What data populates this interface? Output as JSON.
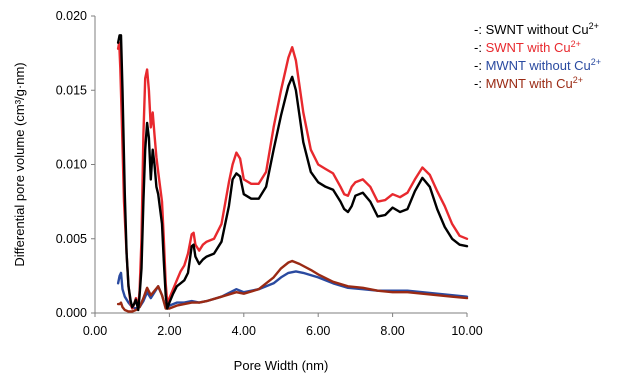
{
  "chart_data": {
    "type": "line",
    "title": "",
    "xlabel": "Pore Width (nm)",
    "ylabel": "Differential pore volume (cm³/g·nm)",
    "xlim": [
      0,
      10
    ],
    "ylim": [
      0,
      0.02
    ],
    "x_ticks": [
      "0.00",
      "2.00",
      "4.00",
      "6.00",
      "8.00",
      "10.00"
    ],
    "y_ticks": [
      "0.000",
      "0.005",
      "0.010",
      "0.015",
      "0.020"
    ],
    "grid": false,
    "legend_position": "right",
    "series": [
      {
        "name_prefix": "-: ",
        "name_main": "SWNT without Cu",
        "name_sup": "2+",
        "color": "#000000",
        "points": [
          [
            0.62,
            0.0182
          ],
          [
            0.66,
            0.0187
          ],
          [
            0.7,
            0.0187
          ],
          [
            0.74,
            0.015
          ],
          [
            0.8,
            0.008
          ],
          [
            0.85,
            0.004
          ],
          [
            0.9,
            0.0018
          ],
          [
            0.96,
            0.0008
          ],
          [
            1.0,
            0.0004
          ],
          [
            1.05,
            0.0006
          ],
          [
            1.1,
            0.0009
          ],
          [
            1.16,
            0.0002
          ],
          [
            1.2,
            0.0012
          ],
          [
            1.25,
            0.003
          ],
          [
            1.3,
            0.0075
          ],
          [
            1.35,
            0.011
          ],
          [
            1.4,
            0.0128
          ],
          [
            1.45,
            0.0118
          ],
          [
            1.5,
            0.009
          ],
          [
            1.55,
            0.011
          ],
          [
            1.6,
            0.01
          ],
          [
            1.65,
            0.0085
          ],
          [
            1.7,
            0.008
          ],
          [
            1.75,
            0.007
          ],
          [
            1.8,
            0.006
          ],
          [
            1.85,
            0.0035
          ],
          [
            1.9,
            0.0012
          ],
          [
            1.94,
            0.0003
          ],
          [
            2.0,
            0.0007
          ],
          [
            2.1,
            0.0013
          ],
          [
            2.2,
            0.0018
          ],
          [
            2.3,
            0.002
          ],
          [
            2.4,
            0.0022
          ],
          [
            2.5,
            0.0027
          ],
          [
            2.6,
            0.0045
          ],
          [
            2.65,
            0.0046
          ],
          [
            2.7,
            0.0038
          ],
          [
            2.8,
            0.0033
          ],
          [
            2.9,
            0.0036
          ],
          [
            3.0,
            0.0038
          ],
          [
            3.2,
            0.004
          ],
          [
            3.4,
            0.0048
          ],
          [
            3.6,
            0.0072
          ],
          [
            3.7,
            0.009
          ],
          [
            3.8,
            0.0094
          ],
          [
            3.9,
            0.0092
          ],
          [
            4.0,
            0.008
          ],
          [
            4.2,
            0.0077
          ],
          [
            4.4,
            0.0077
          ],
          [
            4.6,
            0.0085
          ],
          [
            4.8,
            0.011
          ],
          [
            5.0,
            0.0133
          ],
          [
            5.2,
            0.0153
          ],
          [
            5.3,
            0.0159
          ],
          [
            5.4,
            0.015
          ],
          [
            5.6,
            0.0115
          ],
          [
            5.8,
            0.0095
          ],
          [
            6.0,
            0.0088
          ],
          [
            6.2,
            0.0085
          ],
          [
            6.4,
            0.0083
          ],
          [
            6.6,
            0.0075
          ],
          [
            6.7,
            0.007
          ],
          [
            6.8,
            0.0068
          ],
          [
            6.9,
            0.0072
          ],
          [
            7.0,
            0.0079
          ],
          [
            7.2,
            0.0081
          ],
          [
            7.4,
            0.0075
          ],
          [
            7.6,
            0.0065
          ],
          [
            7.8,
            0.0066
          ],
          [
            8.0,
            0.0071
          ],
          [
            8.2,
            0.0068
          ],
          [
            8.4,
            0.007
          ],
          [
            8.6,
            0.0082
          ],
          [
            8.8,
            0.0091
          ],
          [
            9.0,
            0.0085
          ],
          [
            9.2,
            0.007
          ],
          [
            9.4,
            0.0058
          ],
          [
            9.6,
            0.005
          ],
          [
            9.8,
            0.0046
          ],
          [
            10.0,
            0.0045
          ]
        ]
      },
      {
        "name_prefix": "-: ",
        "name_main": "SWNT with Cu",
        "name_sup": "2+",
        "color": "#e8292e",
        "points": [
          [
            0.62,
            0.0178
          ],
          [
            0.65,
            0.0182
          ],
          [
            0.68,
            0.0165
          ],
          [
            0.72,
            0.013
          ],
          [
            0.78,
            0.0075
          ],
          [
            0.85,
            0.004
          ],
          [
            0.9,
            0.0018
          ],
          [
            0.96,
            0.0006
          ],
          [
            1.0,
            0.0003
          ],
          [
            1.05,
            0.0006
          ],
          [
            1.1,
            0.001
          ],
          [
            1.16,
            0.0004
          ],
          [
            1.2,
            0.0015
          ],
          [
            1.25,
            0.005
          ],
          [
            1.3,
            0.012
          ],
          [
            1.35,
            0.0158
          ],
          [
            1.4,
            0.0164
          ],
          [
            1.45,
            0.015
          ],
          [
            1.5,
            0.0125
          ],
          [
            1.55,
            0.0135
          ],
          [
            1.6,
            0.012
          ],
          [
            1.65,
            0.0105
          ],
          [
            1.7,
            0.0095
          ],
          [
            1.75,
            0.0085
          ],
          [
            1.8,
            0.0075
          ],
          [
            1.85,
            0.005
          ],
          [
            1.9,
            0.002
          ],
          [
            1.95,
            0.0005
          ],
          [
            2.0,
            0.001
          ],
          [
            2.1,
            0.0016
          ],
          [
            2.2,
            0.0022
          ],
          [
            2.3,
            0.0028
          ],
          [
            2.4,
            0.0032
          ],
          [
            2.5,
            0.004
          ],
          [
            2.6,
            0.0053
          ],
          [
            2.65,
            0.0054
          ],
          [
            2.7,
            0.0046
          ],
          [
            2.8,
            0.0042
          ],
          [
            2.9,
            0.0046
          ],
          [
            3.0,
            0.0048
          ],
          [
            3.2,
            0.005
          ],
          [
            3.4,
            0.006
          ],
          [
            3.6,
            0.0088
          ],
          [
            3.7,
            0.01
          ],
          [
            3.8,
            0.0108
          ],
          [
            3.9,
            0.0104
          ],
          [
            4.0,
            0.009
          ],
          [
            4.2,
            0.0087
          ],
          [
            4.4,
            0.0087
          ],
          [
            4.6,
            0.0095
          ],
          [
            4.8,
            0.0125
          ],
          [
            5.0,
            0.015
          ],
          [
            5.2,
            0.0172
          ],
          [
            5.3,
            0.0179
          ],
          [
            5.4,
            0.017
          ],
          [
            5.6,
            0.0135
          ],
          [
            5.8,
            0.011
          ],
          [
            6.0,
            0.01
          ],
          [
            6.2,
            0.0097
          ],
          [
            6.4,
            0.0094
          ],
          [
            6.6,
            0.0085
          ],
          [
            6.7,
            0.008
          ],
          [
            6.8,
            0.0079
          ],
          [
            6.9,
            0.0085
          ],
          [
            7.0,
            0.0088
          ],
          [
            7.2,
            0.009
          ],
          [
            7.4,
            0.0085
          ],
          [
            7.6,
            0.0075
          ],
          [
            7.8,
            0.0076
          ],
          [
            8.0,
            0.008
          ],
          [
            8.2,
            0.0078
          ],
          [
            8.4,
            0.0081
          ],
          [
            8.6,
            0.009
          ],
          [
            8.8,
            0.0098
          ],
          [
            9.0,
            0.0093
          ],
          [
            9.2,
            0.0082
          ],
          [
            9.4,
            0.0072
          ],
          [
            9.6,
            0.006
          ],
          [
            9.8,
            0.0052
          ],
          [
            10.0,
            0.005
          ]
        ]
      },
      {
        "name_prefix": "-: ",
        "name_main": "MWNT without Cu",
        "name_sup": "2+",
        "color": "#2a4aa0",
        "points": [
          [
            0.62,
            0.002
          ],
          [
            0.66,
            0.0025
          ],
          [
            0.7,
            0.0027
          ],
          [
            0.74,
            0.0016
          ],
          [
            0.8,
            0.0011
          ],
          [
            0.9,
            0.0007
          ],
          [
            1.0,
            0.0004
          ],
          [
            1.1,
            0.0003
          ],
          [
            1.2,
            0.0004
          ],
          [
            1.3,
            0.0008
          ],
          [
            1.4,
            0.0014
          ],
          [
            1.5,
            0.001
          ],
          [
            1.6,
            0.0014
          ],
          [
            1.7,
            0.0018
          ],
          [
            1.8,
            0.0012
          ],
          [
            1.9,
            0.0004
          ],
          [
            2.0,
            0.0005
          ],
          [
            2.2,
            0.0007
          ],
          [
            2.4,
            0.0007
          ],
          [
            2.6,
            0.0008
          ],
          [
            2.8,
            0.0007
          ],
          [
            3.0,
            0.0008
          ],
          [
            3.4,
            0.0011
          ],
          [
            3.8,
            0.0016
          ],
          [
            4.0,
            0.0014
          ],
          [
            4.4,
            0.0016
          ],
          [
            4.8,
            0.002
          ],
          [
            5.0,
            0.0024
          ],
          [
            5.2,
            0.0027
          ],
          [
            5.4,
            0.0028
          ],
          [
            5.6,
            0.0027
          ],
          [
            6.0,
            0.0024
          ],
          [
            6.4,
            0.002
          ],
          [
            6.8,
            0.0017
          ],
          [
            7.2,
            0.0016
          ],
          [
            7.6,
            0.0015
          ],
          [
            8.0,
            0.0015
          ],
          [
            8.4,
            0.0015
          ],
          [
            8.8,
            0.0014
          ],
          [
            9.2,
            0.0013
          ],
          [
            9.6,
            0.0012
          ],
          [
            10.0,
            0.0011
          ]
        ]
      },
      {
        "name_prefix": "-: ",
        "name_main": "MWNT with Cu",
        "name_sup": "2+",
        "color": "#9a2a14",
        "points": [
          [
            0.62,
            0.0006
          ],
          [
            0.66,
            0.0006
          ],
          [
            0.7,
            0.0007
          ],
          [
            0.74,
            0.0004
          ],
          [
            0.8,
            0.0002
          ],
          [
            0.9,
            0.0001
          ],
          [
            1.0,
            0.0001
          ],
          [
            1.1,
            0.0002
          ],
          [
            1.2,
            0.0004
          ],
          [
            1.3,
            0.001
          ],
          [
            1.4,
            0.0017
          ],
          [
            1.5,
            0.0012
          ],
          [
            1.6,
            0.0015
          ],
          [
            1.7,
            0.0018
          ],
          [
            1.8,
            0.0012
          ],
          [
            1.9,
            0.0003
          ],
          [
            2.0,
            0.0003
          ],
          [
            2.2,
            0.0005
          ],
          [
            2.4,
            0.0006
          ],
          [
            2.6,
            0.0007
          ],
          [
            2.8,
            0.0007
          ],
          [
            3.0,
            0.0008
          ],
          [
            3.4,
            0.0011
          ],
          [
            3.8,
            0.0014
          ],
          [
            4.0,
            0.0013
          ],
          [
            4.4,
            0.0016
          ],
          [
            4.8,
            0.0024
          ],
          [
            5.0,
            0.003
          ],
          [
            5.2,
            0.0034
          ],
          [
            5.3,
            0.0035
          ],
          [
            5.5,
            0.0033
          ],
          [
            5.8,
            0.0029
          ],
          [
            6.0,
            0.0026
          ],
          [
            6.4,
            0.0021
          ],
          [
            6.8,
            0.0018
          ],
          [
            7.2,
            0.0017
          ],
          [
            7.6,
            0.0015
          ],
          [
            8.0,
            0.0014
          ],
          [
            8.4,
            0.0014
          ],
          [
            8.8,
            0.0013
          ],
          [
            9.2,
            0.0012
          ],
          [
            9.6,
            0.0011
          ],
          [
            10.0,
            0.001
          ]
        ]
      }
    ]
  }
}
